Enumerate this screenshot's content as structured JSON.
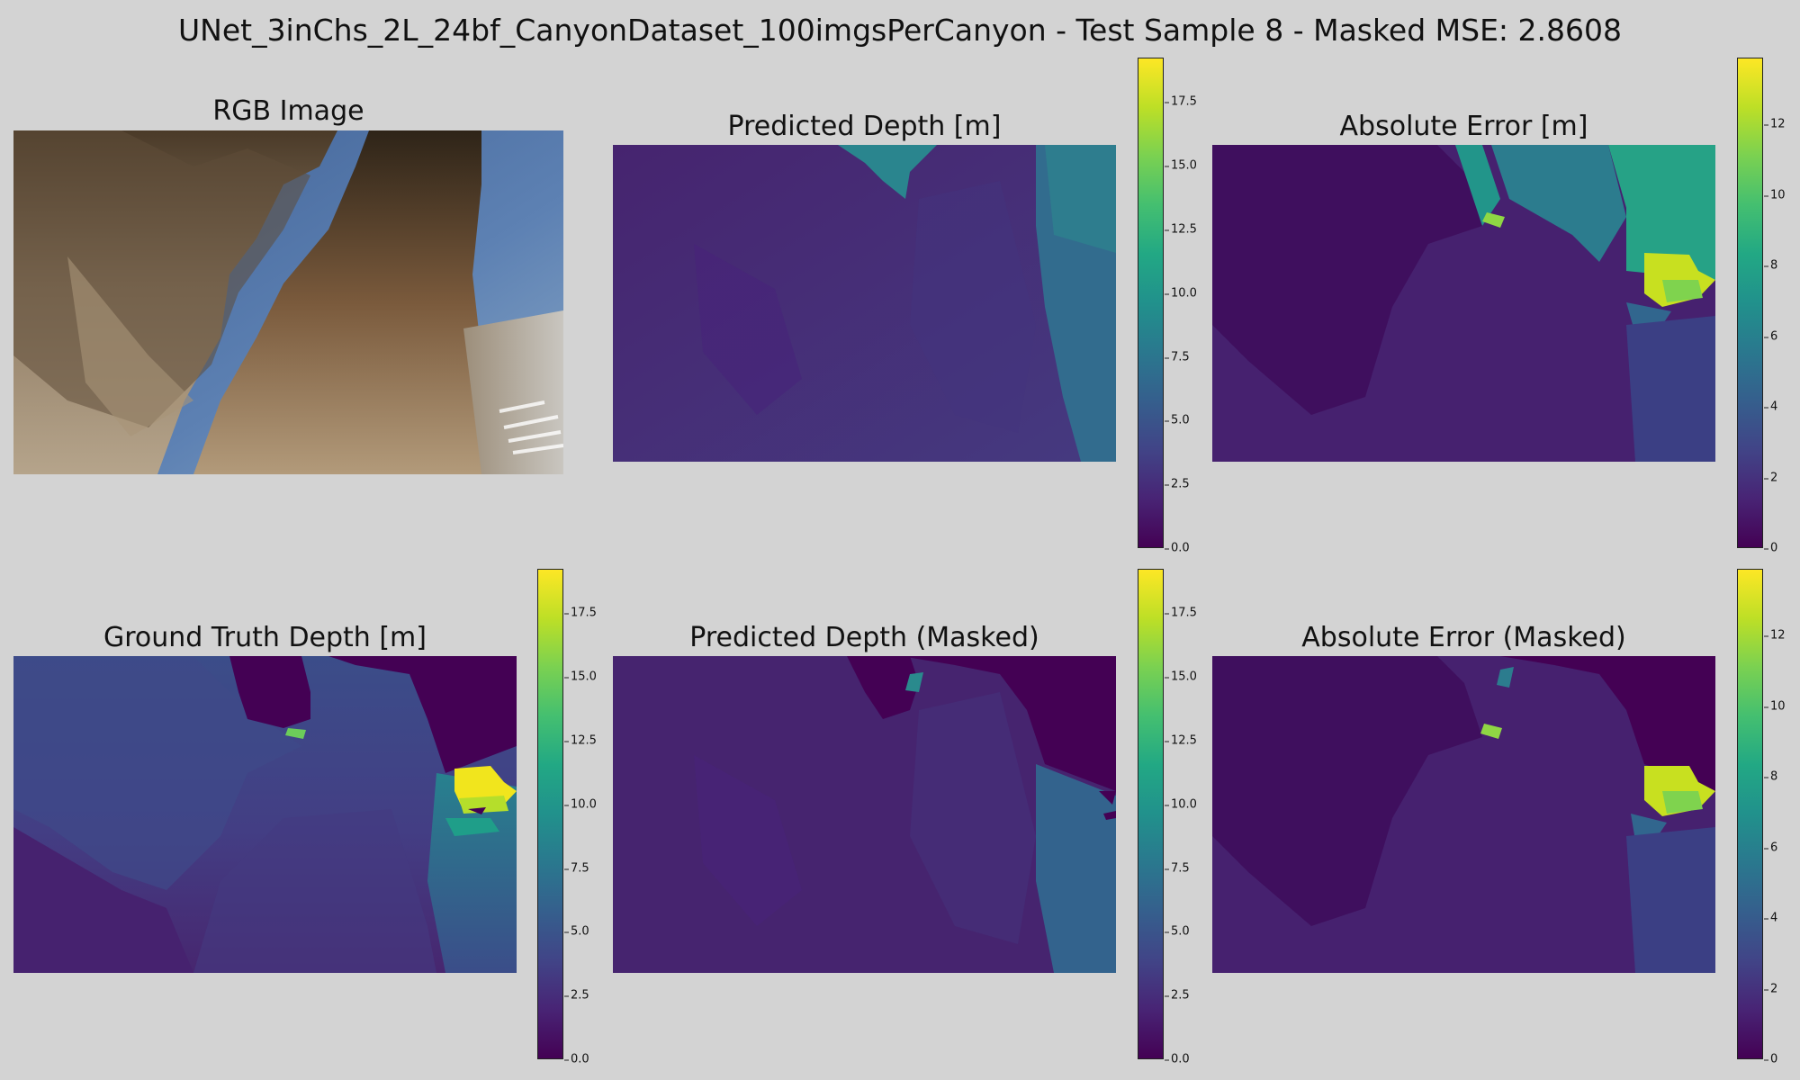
{
  "figure": {
    "suptitle": "UNet_3inChs_2L_24bf_CanyonDataset_100imgsPerCanyon - Test Sample 8 - Masked MSE: 2.8608"
  },
  "panels": {
    "rgb": {
      "title": "RGB Image"
    },
    "pred": {
      "title": "Predicted Depth [m]"
    },
    "err": {
      "title": "Absolute Error [m]"
    },
    "gt": {
      "title": "Ground Truth Depth [m]"
    },
    "pred_masked": {
      "title": "Predicted Depth (Masked)"
    },
    "err_masked": {
      "title": "Absolute Error (Masked)"
    }
  },
  "colorbars": {
    "depth": {
      "ticks": [
        "0.0",
        "2.5",
        "5.0",
        "7.5",
        "10.0",
        "12.5",
        "15.0",
        "17.5"
      ],
      "range": [
        0,
        19.2
      ],
      "colormap": "viridis"
    },
    "error": {
      "ticks": [
        "0",
        "2",
        "4",
        "6",
        "8",
        "10",
        "12"
      ],
      "range": [
        0,
        13.9
      ],
      "colormap": "viridis"
    }
  },
  "colors": {
    "background": "#d3d3d3",
    "viridis_low": "#440154",
    "viridis_mid": "#21918c",
    "viridis_high": "#fde725"
  }
}
